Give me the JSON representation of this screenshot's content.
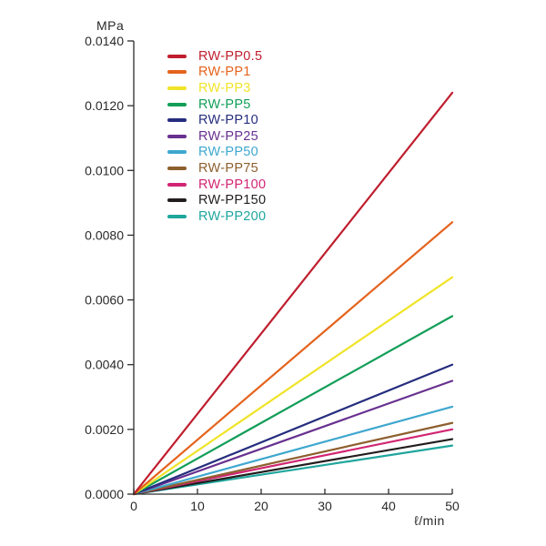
{
  "chart_data": {
    "type": "line",
    "title": "",
    "xlabel": "ℓ/min",
    "ylabel": "MPa",
    "xlim": [
      0,
      50
    ],
    "ylim": [
      0,
      0.014
    ],
    "grid": false,
    "legend_position": "upper-left-inside",
    "x_axis": {
      "title": "ℓ/min",
      "ticks": [
        0,
        10,
        20,
        30,
        40,
        50
      ],
      "tick_labels": [
        "0",
        "10",
        "20",
        "30",
        "40",
        "50"
      ]
    },
    "y_axis": {
      "title": "MPa",
      "ticks": [
        0.0,
        0.002,
        0.004,
        0.006,
        0.008,
        0.01,
        0.012,
        0.014
      ],
      "tick_labels": [
        "0.0000",
        "0.0020",
        "0.0040",
        "0.0060",
        "0.0080",
        "0.0100",
        "0.0120",
        "0.0140"
      ]
    },
    "series": [
      {
        "name": "RW-PP0.5",
        "color": "#bf1e2e",
        "x": [
          0,
          50
        ],
        "y": [
          0,
          0.0124
        ]
      },
      {
        "name": "RW-PP1",
        "color": "#e4631d",
        "x": [
          0,
          50
        ],
        "y": [
          0,
          0.0084
        ]
      },
      {
        "name": "RW-PP3",
        "color": "#f0e428",
        "x": [
          0,
          50
        ],
        "y": [
          0,
          0.0067
        ]
      },
      {
        "name": "RW-PP5",
        "color": "#129e58",
        "x": [
          0,
          50
        ],
        "y": [
          0,
          0.0055
        ]
      },
      {
        "name": "RW-PP10",
        "color": "#252d7e",
        "x": [
          0,
          50
        ],
        "y": [
          0,
          0.004
        ]
      },
      {
        "name": "RW-PP25",
        "color": "#683090",
        "x": [
          0,
          50
        ],
        "y": [
          0,
          0.0035
        ]
      },
      {
        "name": "RW-PP50",
        "color": "#3ea7cf",
        "x": [
          0,
          50
        ],
        "y": [
          0,
          0.0027
        ]
      },
      {
        "name": "RW-PP75",
        "color": "#8d5f2e",
        "x": [
          0,
          50
        ],
        "y": [
          0,
          0.0022
        ]
      },
      {
        "name": "RW-PP100",
        "color": "#d12572",
        "x": [
          0,
          50
        ],
        "y": [
          0,
          0.002
        ]
      },
      {
        "name": "RW-PP150",
        "color": "#221d1d",
        "x": [
          0,
          50
        ],
        "y": [
          0,
          0.0017
        ]
      },
      {
        "name": "RW-PP200",
        "color": "#1fa69d",
        "x": [
          0,
          50
        ],
        "y": [
          0,
          0.0015
        ]
      }
    ],
    "axis_color": "#2b2b2b"
  }
}
